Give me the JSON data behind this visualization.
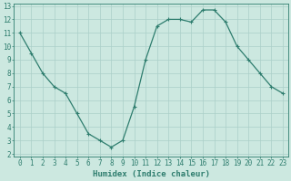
{
  "x": [
    0,
    1,
    2,
    3,
    4,
    5,
    6,
    7,
    8,
    9,
    10,
    11,
    12,
    13,
    14,
    15,
    16,
    17,
    18,
    19,
    20,
    21,
    22,
    23
  ],
  "y": [
    11,
    9.5,
    8,
    7,
    6.5,
    5,
    3.5,
    3.0,
    2.5,
    3.0,
    5.5,
    9.0,
    11.5,
    12.0,
    12.0,
    11.8,
    12.7,
    12.7,
    11.8,
    10.0,
    9.0,
    8.0,
    7.0,
    6.5
  ],
  "line_color": "#2e7d6e",
  "marker": "P",
  "markersize": 2.5,
  "bg_color": "#cce8e0",
  "grid_color": "#aacfc8",
  "xlabel": "Humidex (Indice chaleur)",
  "xlim": [
    -0.5,
    23.5
  ],
  "ylim": [
    1.8,
    13.2
  ],
  "yticks": [
    2,
    3,
    4,
    5,
    6,
    7,
    8,
    9,
    10,
    11,
    12,
    13
  ],
  "xticks": [
    0,
    1,
    2,
    3,
    4,
    5,
    6,
    7,
    8,
    9,
    10,
    11,
    12,
    13,
    14,
    15,
    16,
    17,
    18,
    19,
    20,
    21,
    22,
    23
  ],
  "font_color": "#2e7d6e",
  "tick_fontsize": 5.5,
  "xlabel_fontsize": 6.5
}
